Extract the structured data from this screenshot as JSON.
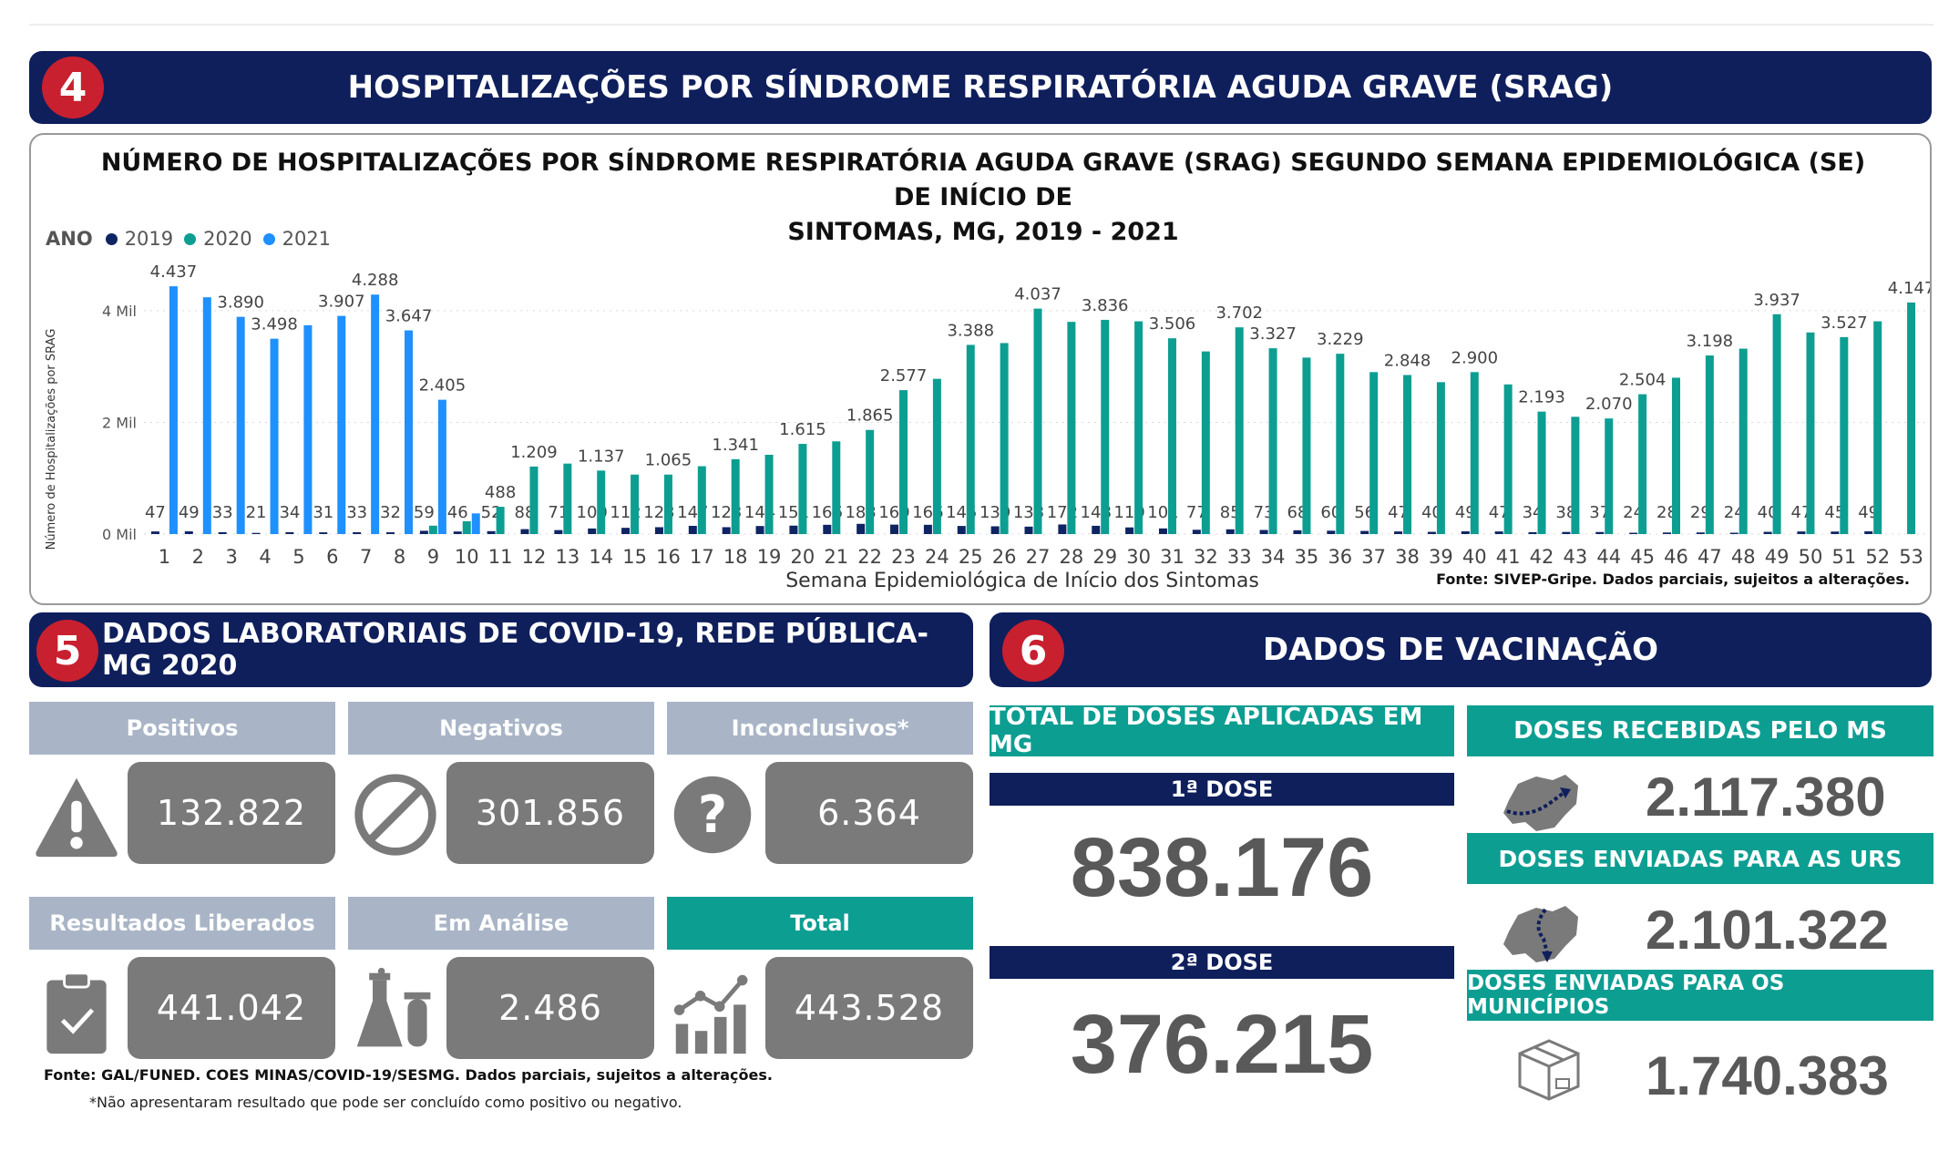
{
  "section4": {
    "badge": "4",
    "title": "HOSPITALIZAÇÕES POR SÍNDROME RESPIRATÓRIA AGUDA GRAVE (SRAG)"
  },
  "chart": {
    "title_line1": "NÚMERO DE HOSPITALIZAÇÕES POR SÍNDROME RESPIRATÓRIA AGUDA GRAVE (SRAG) SEGUNDO SEMANA EPIDEMIOLÓGICA (SE) DE INÍCIO DE",
    "title_line2": "SINTOMAS, MG, 2019 - 2021",
    "legend_title": "ANO",
    "source": "Fonte: SIVEP-Gripe. Dados parciais, sujeitos a alterações."
  },
  "chart_data": {
    "type": "bar",
    "xlabel": "Semana Epidemiológica de Início dos Sintomas",
    "ylabel": "Número de Hospitalizações por SRAG",
    "yticks": [
      "0 Mil",
      "2 Mil",
      "4 Mil"
    ],
    "ylim": [
      0,
      4700
    ],
    "grid": true,
    "legend_position": "top-left",
    "categories": [
      "1",
      "2",
      "3",
      "4",
      "5",
      "6",
      "7",
      "8",
      "9",
      "10",
      "11",
      "12",
      "13",
      "14",
      "15",
      "16",
      "17",
      "18",
      "19",
      "20",
      "21",
      "22",
      "23",
      "24",
      "25",
      "26",
      "27",
      "28",
      "29",
      "30",
      "31",
      "32",
      "33",
      "34",
      "35",
      "36",
      "37",
      "38",
      "39",
      "40",
      "41",
      "42",
      "43",
      "44",
      "45",
      "46",
      "47",
      "48",
      "49",
      "50",
      "51",
      "52",
      "53"
    ],
    "series": [
      {
        "name": "2019",
        "color": "#0f2463",
        "values": [
          47,
          49,
          33,
          21,
          34,
          31,
          33,
          32,
          59,
          46,
          52,
          88,
          71,
          100,
          112,
          123,
          147,
          123,
          144,
          151,
          166,
          183,
          169,
          166,
          145,
          139,
          133,
          172,
          148,
          119,
          101,
          77,
          85,
          73,
          68,
          60,
          56,
          47,
          40,
          49,
          47,
          34,
          38,
          37,
          24,
          28,
          29,
          24,
          40,
          47,
          45,
          49,
          null
        ],
        "labels": [
          "47",
          "49",
          "33",
          "21",
          "34",
          "31",
          "33",
          "32",
          "59",
          "46",
          "52",
          "88",
          "71",
          "100",
          "112",
          "123",
          "147",
          "123",
          "144",
          "151",
          "166",
          "183",
          "169",
          "166",
          "145",
          "139",
          "133",
          "172",
          "148",
          "119",
          "101",
          "77",
          "85",
          "73",
          "68",
          "60",
          "56",
          "47",
          "40",
          "49",
          "47",
          "34",
          "38",
          "37",
          "24",
          "28",
          "29",
          "24",
          "40",
          "47",
          "45",
          "49",
          ""
        ]
      },
      {
        "name": "2020",
        "color": "#0d9e92",
        "values": [
          null,
          null,
          null,
          null,
          null,
          null,
          null,
          null,
          150,
          230,
          488,
          1209,
          1262,
          1137,
          1065,
          1065,
          1215,
          1341,
          1420,
          1615,
          1660,
          1865,
          2577,
          2780,
          3388,
          3420,
          4037,
          3800,
          3836,
          3810,
          3506,
          3270,
          3702,
          3327,
          3160,
          3229,
          2900,
          2848,
          2720,
          2900,
          2680,
          2193,
          2100,
          2070,
          2504,
          2800,
          3198,
          3320,
          3937,
          3610,
          3527,
          3810,
          4147
        ],
        "labels": [
          "",
          "",
          "",
          "",
          "",
          "",
          "",
          "",
          "",
          "",
          "488",
          "1.209",
          "",
          "1.137",
          "",
          "1.065",
          "",
          "1.341",
          "",
          "1.615",
          "",
          "1.865",
          "2.577",
          "",
          "3.388",
          "",
          "4.037",
          "",
          "3.836",
          "",
          "3.506",
          "",
          "3.702",
          "3.327",
          "",
          "3.229",
          "",
          "2.848",
          "",
          "2.900",
          "",
          "2.193",
          "",
          "2.070",
          "2.504",
          "",
          "3.198",
          "",
          "3.937",
          "",
          "3.527",
          "",
          "4.147"
        ]
      },
      {
        "name": "2021",
        "color": "#1e90ff",
        "values": [
          4437,
          4240,
          3890,
          3498,
          3740,
          3907,
          4288,
          3647,
          2405,
          370,
          null,
          null,
          null,
          null,
          null,
          null,
          null,
          null,
          null,
          null,
          null,
          null,
          null,
          null,
          null,
          null,
          null,
          null,
          null,
          null,
          null,
          null,
          null,
          null,
          null,
          null,
          null,
          null,
          null,
          null,
          null,
          null,
          null,
          null,
          null,
          null,
          null,
          null,
          null,
          null,
          null,
          null,
          null
        ],
        "labels": [
          "4.437",
          "",
          "3.890",
          "3.498",
          "",
          "3.907",
          "4.288",
          "3.647",
          "2.405",
          "",
          "",
          "",
          "",
          "",
          "",
          "",
          "",
          "",
          "",
          "",
          "",
          "",
          "",
          "",
          "",
          "",
          "",
          "",
          "",
          "",
          "",
          "",
          "",
          "",
          "",
          "",
          "",
          "",
          "",
          "",
          "",
          "",
          "",
          "",
          "",
          "",
          "",
          "",
          "",
          "",
          "",
          "",
          ""
        ]
      }
    ]
  },
  "section5": {
    "badge": "5",
    "title": "DADOS LABORATORIAIS DE COVID-19, REDE PÚBLICA-MG 2020",
    "cards": [
      {
        "header": "Positivos",
        "value": "132.822",
        "icon": "warning-icon"
      },
      {
        "header": "Negativos",
        "value": "301.856",
        "icon": "prohibited-icon"
      },
      {
        "header": "Inconclusivos*",
        "value": "6.364",
        "icon": "question-icon"
      },
      {
        "header": "Resultados Liberados",
        "value": "441.042",
        "icon": "clipboard-check-icon"
      },
      {
        "header": "Em Análise",
        "value": "2.486",
        "icon": "lab-flask-icon"
      },
      {
        "header": "Total",
        "value": "443.528",
        "icon": "growth-chart-icon"
      }
    ],
    "source": "Fonte: GAL/FUNED. COES MINAS/COVID-19/SESMG. Dados parciais, sujeitos a alterações.",
    "note": "*Não apresentaram resultado que pode ser concluído como positivo ou negativo."
  },
  "section6": {
    "badge": "6",
    "title": "DADOS DE VACINAÇÃO",
    "total_header": "TOTAL DE DOSES APLICADAS EM MG",
    "dose1_label": "1ª DOSE",
    "dose1_value": "838.176",
    "dose2_label": "2ª DOSE",
    "dose2_value": "376.215",
    "received_header": "DOSES RECEBIDAS PELO MS",
    "received_value": "2.117.380",
    "urs_header": "DOSES ENVIADAS PARA AS URS",
    "urs_value": "2.101.322",
    "mun_header": "DOSES ENVIADAS PARA OS MUNICÍPIOS",
    "mun_value": "1.740.383"
  },
  "colors": {
    "navy": "#0f1f5c",
    "red_badge": "#c8202f",
    "teal": "#0d9e92",
    "header_gray": "#a9b5c7",
    "value_gray": "#7a7a7a"
  }
}
